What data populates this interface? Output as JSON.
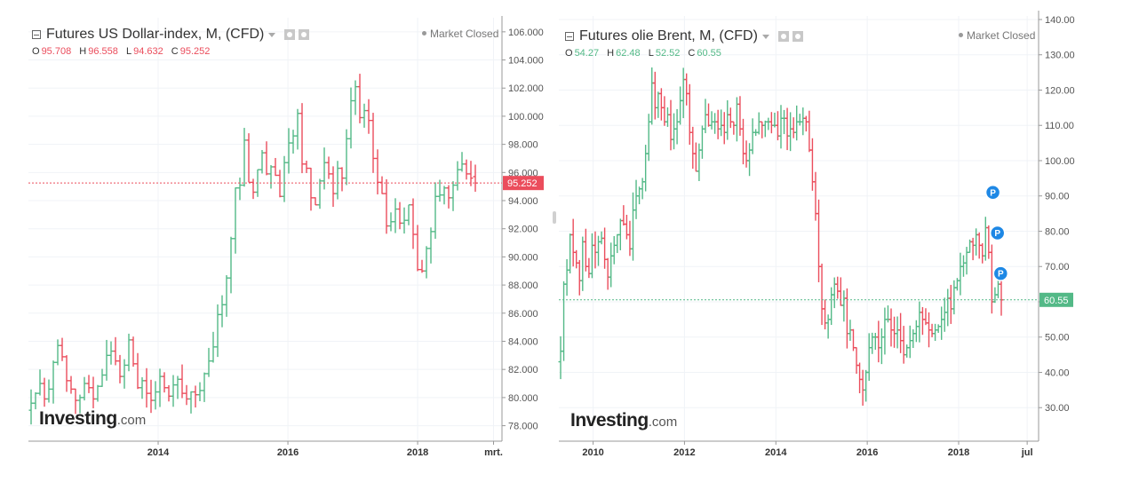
{
  "colors": {
    "up": "#53b987",
    "down": "#eb4d5c",
    "grid": "#f0f3f7",
    "axis": "#999999"
  },
  "left": {
    "title": "Futures US Dollar-index, M, (CFD)",
    "market_status": "Market Closed",
    "ohlc": {
      "o_label": "O",
      "o": "95.708",
      "h_label": "H",
      "h": "96.558",
      "l_label": "L",
      "l": "94.632",
      "c_label": "C",
      "c": "95.252"
    },
    "logo": "Investing",
    "logo_suffix": ".com"
  },
  "right": {
    "title": "Futures olie Brent, M, (CFD)",
    "market_status": "Market Closed",
    "ohlc": {
      "o_label": "O",
      "o": "54.27",
      "h_label": "H",
      "h": "62.48",
      "l_label": "L",
      "l": "52.52",
      "c_label": "C",
      "c": "60.55"
    },
    "logo": "Investing",
    "logo_suffix": ".com"
  },
  "chart_data": [
    {
      "type": "ohlc",
      "title": "Futures US Dollar-index, M, (CFD)",
      "x_tick_labels": [
        "2014",
        "2016",
        "2018",
        "mrt."
      ],
      "x_tick_dates": [
        2014.0,
        2016.0,
        2018.0,
        2019.17
      ],
      "x_range": [
        2012.0,
        2019.3
      ],
      "y_ticks": [
        "106.000",
        "104.000",
        "102.000",
        "100.000",
        "98.000",
        "96.000",
        "94.000",
        "92.000",
        "90.000",
        "88.000",
        "86.000",
        "84.000",
        "82.000",
        "80.000",
        "78.000"
      ],
      "ylim": [
        76.9,
        107.0
      ],
      "last_price": "95.252",
      "series_closes": [
        79.6,
        80.3,
        81.0,
        79.9,
        80.6,
        82.5,
        83.7,
        82.9,
        81.2,
        80.6,
        79.8,
        80.0,
        81.0,
        80.7,
        79.9,
        80.8,
        81.6,
        83.0,
        83.3,
        82.6,
        81.5,
        82.3,
        84.1,
        82.4,
        80.7,
        81.2,
        80.3,
        79.8,
        80.4,
        81.5,
        80.7,
        80.1,
        80.9,
        81.3,
        80.3,
        79.9,
        80.4,
        80.2,
        80.5,
        81.7,
        82.6,
        83.6,
        85.9,
        86.6,
        88.5,
        91.3,
        94.9,
        95.1,
        98.3,
        95.3,
        94.6,
        96.2,
        97.4,
        95.9,
        96.4,
        95.8,
        94.3,
        96.7,
        98.1,
        98.6,
        100.2,
        96.6,
        96.3,
        94.2,
        93.7,
        95.4,
        96.7,
        95.9,
        94.5,
        96.3,
        95.6,
        98.4,
        101.1,
        102.1,
        99.9,
        100.4,
        99.7,
        97.0,
        95.3,
        94.5,
        92.2,
        92.5,
        93.4,
        92.4,
        92.6,
        93.7,
        91.6,
        89.1,
        89.0,
        90.6,
        91.8,
        94.3,
        94.4,
        94.9,
        94.2,
        95.1,
        96.2,
        96.6,
        95.9,
        95.6,
        95.25
      ],
      "last_candle_ohlc": {
        "o": 95.708,
        "h": 96.558,
        "l": 94.632,
        "c": 95.252
      }
    },
    {
      "type": "ohlc",
      "title": "Futures olie Brent, M, (CFD)",
      "x_tick_labels": [
        "2010",
        "2012",
        "2014",
        "2016",
        "2018",
        "jul"
      ],
      "x_tick_dates": [
        2010.0,
        2012.0,
        2014.0,
        2016.0,
        2018.0,
        2019.5
      ],
      "x_range": [
        2009.25,
        2019.75
      ],
      "y_ticks": [
        "140.00",
        "130.00",
        "120.00",
        "110.00",
        "100.00",
        "90.00",
        "80.00",
        "70.00",
        "60.00",
        "50.00",
        "40.00",
        "30.00"
      ],
      "ylim": [
        20.5,
        141.0
      ],
      "last_price": "60.55",
      "markers": [
        {
          "label": "P",
          "x": 2018.75,
          "y": 91.0
        },
        {
          "label": "P",
          "x": 2018.85,
          "y": 79.5
        },
        {
          "label": "P",
          "x": 2018.92,
          "y": 68.0
        }
      ],
      "series_closes": [
        46,
        65,
        69,
        79,
        74,
        71,
        66,
        77,
        70,
        68,
        76,
        74,
        77,
        78,
        72,
        67,
        73,
        76,
        79,
        83,
        82,
        79,
        75,
        86,
        90,
        92,
        94,
        102,
        111,
        122,
        115,
        119,
        115,
        111,
        113,
        106,
        109,
        111,
        117,
        123,
        119,
        108,
        102,
        97,
        103,
        109,
        113,
        110,
        111,
        111,
        109,
        110,
        108,
        113,
        111,
        110,
        116,
        109,
        102,
        100,
        103,
        108,
        108,
        111,
        110,
        111,
        111,
        110,
        110,
        107,
        112,
        112,
        107,
        109,
        108,
        111,
        111,
        112,
        111,
        103,
        94,
        85,
        70,
        58,
        54,
        55,
        62,
        65,
        63,
        59,
        61,
        51,
        52,
        47,
        42,
        38,
        35,
        40,
        47,
        50,
        50,
        47,
        50,
        55,
        55,
        52,
        51,
        52,
        49,
        45,
        47,
        49,
        51,
        53,
        57,
        55,
        54,
        52,
        51,
        52,
        53,
        55,
        57,
        61,
        58,
        64,
        66,
        70,
        71,
        74,
        77,
        76,
        79,
        76,
        73,
        81,
        74,
        60,
        62,
        65,
        60.55
      ]
    }
  ]
}
